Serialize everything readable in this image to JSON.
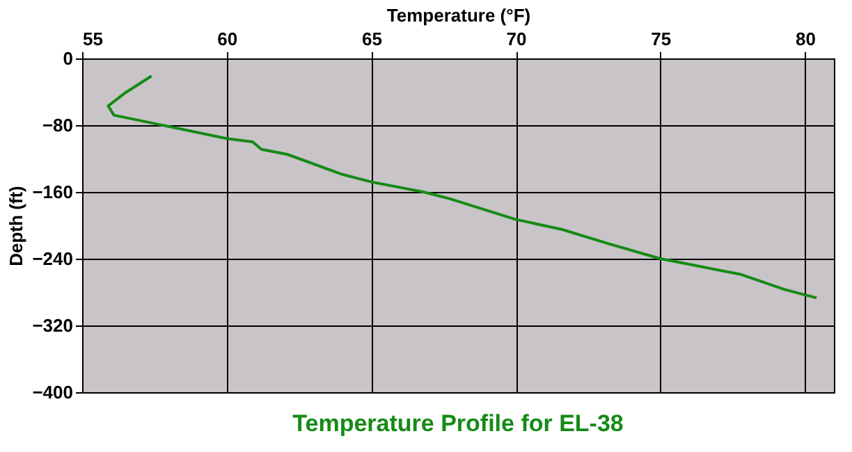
{
  "chart_data": {
    "type": "line",
    "title": "Temperature Profile for EL-38",
    "xlabel": "Temperature (°F)",
    "ylabel": "Depth (ft)",
    "x": [
      57.4,
      56.5,
      55.9,
      56.1,
      57.5,
      60,
      60.9,
      61.2,
      62.1,
      64,
      65,
      66.8,
      67.7,
      70,
      71.6,
      73.2,
      75,
      77.8,
      79.3,
      80.4
    ],
    "series": [
      {
        "color": "#168a16",
        "values": [
          -21,
          -41,
          -57,
          -68,
          -78,
          -96,
          -100,
          -109,
          -115,
          -139,
          -148,
          -160,
          -168,
          -193,
          -205,
          -222,
          -240,
          -259,
          -277,
          -287
        ]
      }
    ],
    "xlim": [
      55,
      81
    ],
    "xticks": [
      55,
      60,
      65,
      70,
      75,
      80
    ],
    "ylim": [
      -400,
      0
    ],
    "yticks": [
      -400,
      -320,
      -240,
      -160,
      -80,
      0
    ],
    "grid": true,
    "marker": "none",
    "line_style": "solid"
  }
}
